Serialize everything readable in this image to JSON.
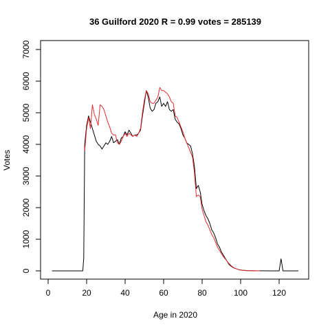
{
  "chart_data": {
    "type": "line",
    "title": "36 Guilford 2020 R = 0.99 votes = 285139",
    "xlabel": "Age in 2020",
    "ylabel": "Votes",
    "xlim": [
      0,
      130
    ],
    "ylim": [
      0,
      7000
    ],
    "xticks": [
      0,
      20,
      40,
      60,
      80,
      100,
      120
    ],
    "yticks": [
      0,
      1000,
      2000,
      3000,
      4000,
      5000,
      6000,
      7000
    ],
    "grid": false,
    "series": [
      {
        "color": "#000000",
        "points": [
          [
            2,
            0
          ],
          [
            18,
            0
          ],
          [
            18.5,
            400
          ],
          [
            19,
            4000
          ],
          [
            20,
            4600
          ],
          [
            21,
            4900
          ],
          [
            22,
            4700
          ],
          [
            23,
            4500
          ],
          [
            24,
            4300
          ],
          [
            25,
            4100
          ],
          [
            26,
            4000
          ],
          [
            27,
            3950
          ],
          [
            28,
            3850
          ],
          [
            29,
            3950
          ],
          [
            30,
            4050
          ],
          [
            31,
            4000
          ],
          [
            32,
            4100
          ],
          [
            33,
            4250
          ],
          [
            34,
            4050
          ],
          [
            35,
            4100
          ],
          [
            36,
            4150
          ],
          [
            37,
            4000
          ],
          [
            38,
            4200
          ],
          [
            39,
            4250
          ],
          [
            40,
            4400
          ],
          [
            41,
            4300
          ],
          [
            42,
            4450
          ],
          [
            43,
            4350
          ],
          [
            44,
            4250
          ],
          [
            45,
            4300
          ],
          [
            46,
            4300
          ],
          [
            47,
            4350
          ],
          [
            48,
            4450
          ],
          [
            49,
            4900
          ],
          [
            50,
            5300
          ],
          [
            51,
            5700
          ],
          [
            52,
            5500
          ],
          [
            53,
            5150
          ],
          [
            54,
            5050
          ],
          [
            55,
            5100
          ],
          [
            56,
            5300
          ],
          [
            57,
            5350
          ],
          [
            58,
            5500
          ],
          [
            59,
            5200
          ],
          [
            60,
            5300
          ],
          [
            61,
            5200
          ],
          [
            62,
            5350
          ],
          [
            63,
            5100
          ],
          [
            64,
            5050
          ],
          [
            65,
            5100
          ],
          [
            66,
            4800
          ],
          [
            67,
            4700
          ],
          [
            68,
            4650
          ],
          [
            69,
            4500
          ],
          [
            70,
            4300
          ],
          [
            71,
            4200
          ],
          [
            72,
            4050
          ],
          [
            73,
            4000
          ],
          [
            74,
            3950
          ],
          [
            75,
            3700
          ],
          [
            76,
            3300
          ],
          [
            77,
            2600
          ],
          [
            78,
            2700
          ],
          [
            79,
            2500
          ],
          [
            80,
            2100
          ],
          [
            81,
            1900
          ],
          [
            82,
            1750
          ],
          [
            83,
            1650
          ],
          [
            84,
            1500
          ],
          [
            85,
            1300
          ],
          [
            86,
            1200
          ],
          [
            87,
            1050
          ],
          [
            88,
            850
          ],
          [
            89,
            750
          ],
          [
            90,
            600
          ],
          [
            91,
            500
          ],
          [
            92,
            400
          ],
          [
            93,
            300
          ],
          [
            94,
            200
          ],
          [
            95,
            150
          ],
          [
            96,
            110
          ],
          [
            97,
            80
          ],
          [
            98,
            60
          ],
          [
            99,
            40
          ],
          [
            100,
            30
          ],
          [
            101,
            20
          ],
          [
            102,
            15
          ],
          [
            103,
            10
          ],
          [
            104,
            8
          ],
          [
            105,
            6
          ],
          [
            106,
            5
          ],
          [
            107,
            4
          ],
          [
            108,
            3
          ],
          [
            109,
            2
          ],
          [
            110,
            2
          ],
          [
            115,
            1
          ],
          [
            118,
            0
          ],
          [
            120,
            0
          ],
          [
            121,
            380
          ],
          [
            122,
            0
          ],
          [
            124,
            0
          ],
          [
            127,
            0
          ],
          [
            130,
            0
          ]
        ]
      },
      {
        "color": "#e8282b",
        "points": [
          [
            19,
            3800
          ],
          [
            20,
            4500
          ],
          [
            21,
            4850
          ],
          [
            22,
            4500
          ],
          [
            23,
            5250
          ],
          [
            24,
            4950
          ],
          [
            25,
            4800
          ],
          [
            26,
            4600
          ],
          [
            27,
            5250
          ],
          [
            28,
            5200
          ],
          [
            29,
            5100
          ],
          [
            30,
            4900
          ],
          [
            31,
            4700
          ],
          [
            32,
            4550
          ],
          [
            33,
            4350
          ],
          [
            34,
            4300
          ],
          [
            35,
            4300
          ],
          [
            36,
            4050
          ],
          [
            37,
            4000
          ],
          [
            38,
            4100
          ],
          [
            39,
            4250
          ],
          [
            40,
            4350
          ],
          [
            41,
            4250
          ],
          [
            42,
            4350
          ],
          [
            43,
            4300
          ],
          [
            44,
            4250
          ],
          [
            45,
            4300
          ],
          [
            46,
            4250
          ],
          [
            47,
            4350
          ],
          [
            48,
            4500
          ],
          [
            49,
            5000
          ],
          [
            50,
            5400
          ],
          [
            51,
            5700
          ],
          [
            52,
            5600
          ],
          [
            53,
            5350
          ],
          [
            54,
            5300
          ],
          [
            55,
            5300
          ],
          [
            56,
            5400
          ],
          [
            57,
            5500
          ],
          [
            58,
            5800
          ],
          [
            59,
            5700
          ],
          [
            60,
            5700
          ],
          [
            61,
            5650
          ],
          [
            62,
            5600
          ],
          [
            63,
            5500
          ],
          [
            64,
            5350
          ],
          [
            65,
            5300
          ],
          [
            66,
            4900
          ],
          [
            67,
            4850
          ],
          [
            68,
            4700
          ],
          [
            69,
            4550
          ],
          [
            70,
            4400
          ],
          [
            71,
            4200
          ],
          [
            72,
            4050
          ],
          [
            73,
            3900
          ],
          [
            74,
            3750
          ],
          [
            75,
            3600
          ],
          [
            76,
            3100
          ],
          [
            77,
            2350
          ],
          [
            78,
            2400
          ],
          [
            79,
            2350
          ],
          [
            80,
            1950
          ],
          [
            81,
            1750
          ],
          [
            82,
            1550
          ],
          [
            83,
            1450
          ],
          [
            84,
            1300
          ],
          [
            85,
            1150
          ],
          [
            86,
            1050
          ],
          [
            87,
            900
          ],
          [
            88,
            750
          ],
          [
            89,
            650
          ],
          [
            90,
            550
          ],
          [
            91,
            450
          ],
          [
            92,
            380
          ],
          [
            93,
            300
          ],
          [
            94,
            230
          ],
          [
            95,
            170
          ],
          [
            96,
            120
          ],
          [
            97,
            85
          ],
          [
            98,
            60
          ],
          [
            99,
            40
          ],
          [
            100,
            25
          ],
          [
            101,
            15
          ],
          [
            102,
            10
          ],
          [
            103,
            6
          ],
          [
            104,
            4
          ],
          [
            105,
            3
          ],
          [
            106,
            2
          ],
          [
            107,
            1
          ],
          [
            108,
            1
          ],
          [
            110,
            0
          ]
        ]
      }
    ]
  }
}
